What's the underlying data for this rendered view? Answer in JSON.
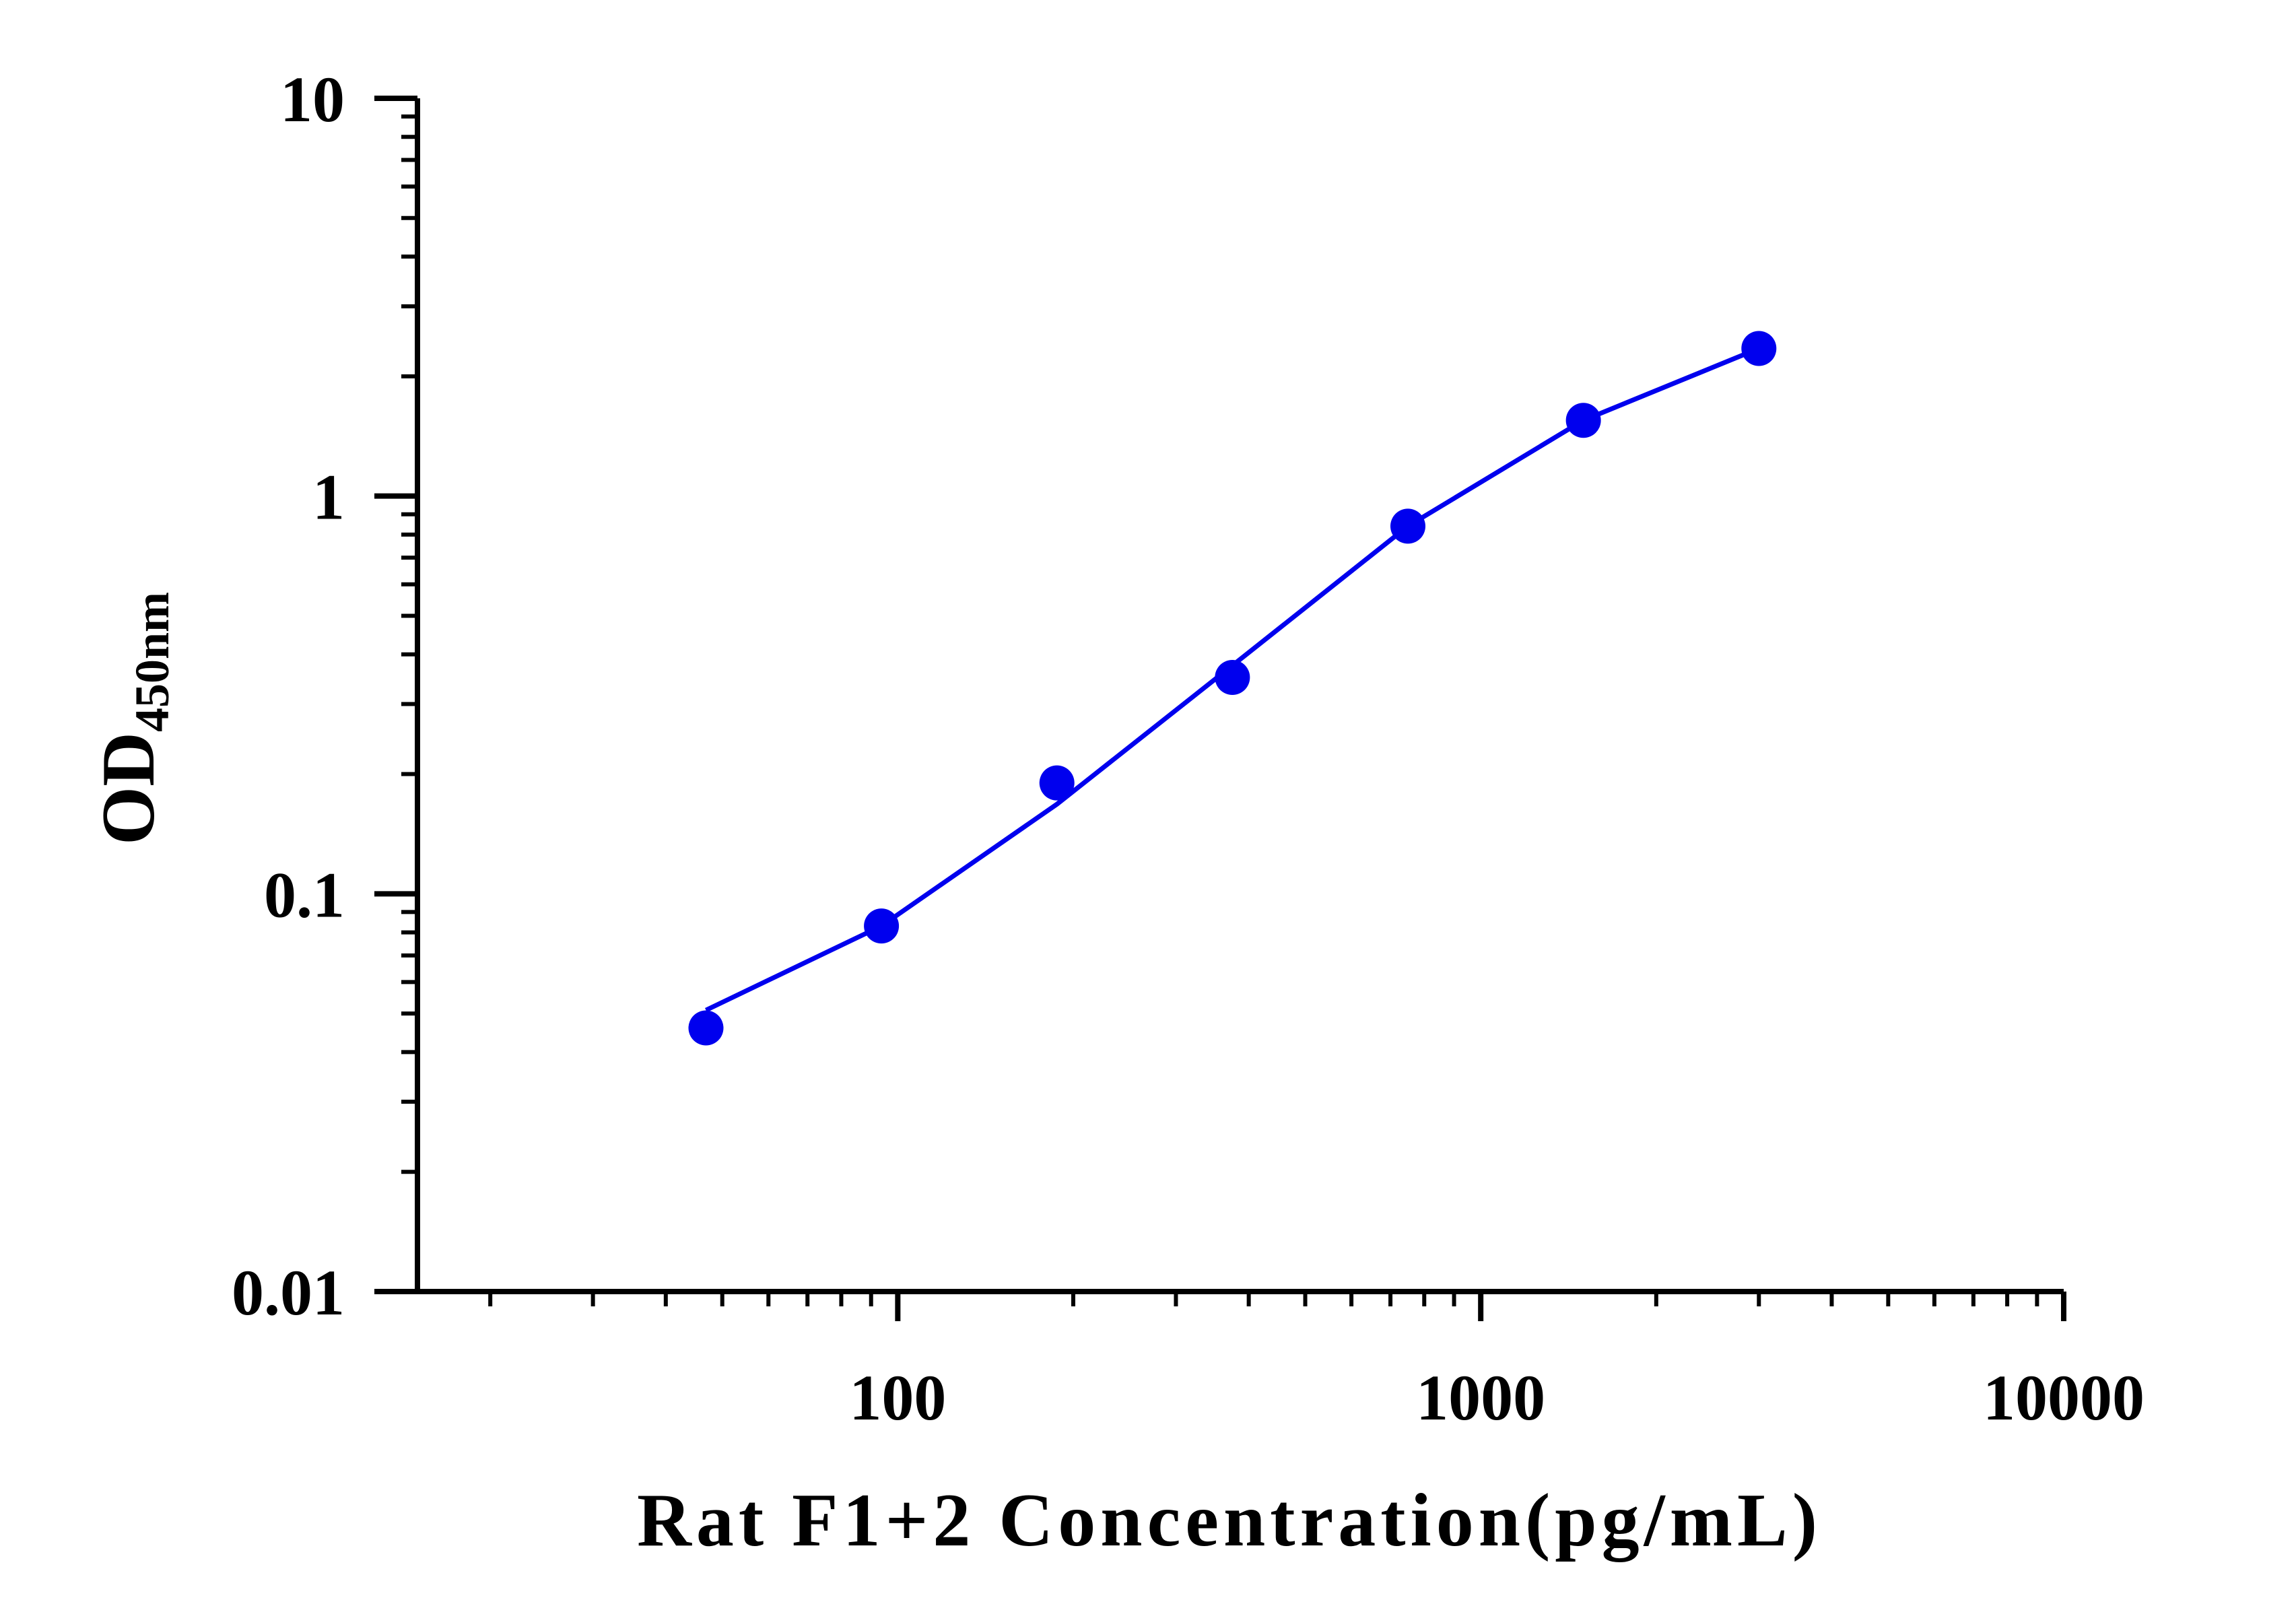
{
  "chart_data": {
    "type": "scatter",
    "xlabel": "Rat F1+2 Concentration(pg/mL)",
    "ylabel_main": "OD",
    "ylabel_subscript": "450nm",
    "x_scale": "log",
    "y_scale": "log",
    "xlim": [
      15,
      10000
    ],
    "ylim": [
      0.01,
      10
    ],
    "x_ticks": [
      {
        "value": 100,
        "label": "100"
      },
      {
        "value": 1000,
        "label": "1000"
      },
      {
        "value": 10000,
        "label": "10000"
      }
    ],
    "y_ticks": [
      {
        "value": 10,
        "label": "10"
      },
      {
        "value": 1,
        "label": "1"
      },
      {
        "value": 0.1,
        "label": "0.1"
      },
      {
        "value": 0.01,
        "label": "0.01"
      }
    ],
    "grid": false,
    "series": [
      {
        "color": "#0000ee",
        "points": [
          {
            "x": 46.88,
            "y": 0.046
          },
          {
            "x": 93.75,
            "y": 0.083
          },
          {
            "x": 187.5,
            "y": 0.19
          },
          {
            "x": 375,
            "y": 0.35
          },
          {
            "x": 750,
            "y": 0.84
          },
          {
            "x": 1500,
            "y": 1.55
          },
          {
            "x": 3000,
            "y": 2.35
          }
        ],
        "fit_curve": [
          {
            "x": 46.88,
            "y": 0.051
          },
          {
            "x": 93.75,
            "y": 0.083
          },
          {
            "x": 187.5,
            "y": 0.168
          },
          {
            "x": 375,
            "y": 0.375
          },
          {
            "x": 750,
            "y": 0.84
          },
          {
            "x": 1500,
            "y": 1.55
          },
          {
            "x": 3000,
            "y": 2.35
          }
        ]
      }
    ]
  }
}
